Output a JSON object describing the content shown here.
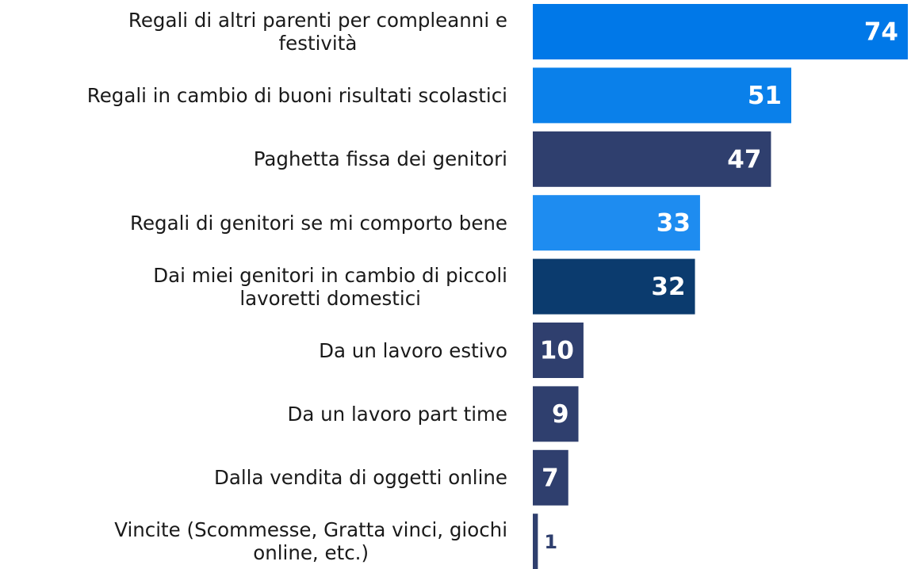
{
  "chart_data": {
    "type": "bar",
    "orientation": "horizontal",
    "categories": [
      "Regali di altri parenti per compleanni e\nfestività",
      "Regali in cambio di buoni risultati scolastici",
      "Paghetta fissa dei genitori",
      "Regali di genitori se mi comporto bene",
      "Dai miei genitori in cambio di piccoli\nlavoretti domestici",
      "Da un lavoro estivo",
      "Da un lavoro part time",
      "Dalla vendita di oggetti online",
      "Vincite (Scommesse, Gratta vinci, giochi\nonline, etc.)"
    ],
    "values": [
      74,
      51,
      47,
      33,
      32,
      10,
      9,
      7,
      1
    ],
    "colors": [
      "#0078e8",
      "#0a80ea",
      "#2f3f6e",
      "#1e8cf0",
      "#0b3b6e",
      "#2f3f6e",
      "#2f3f6e",
      "#2f3f6e",
      "#2f3f6e"
    ]
  }
}
